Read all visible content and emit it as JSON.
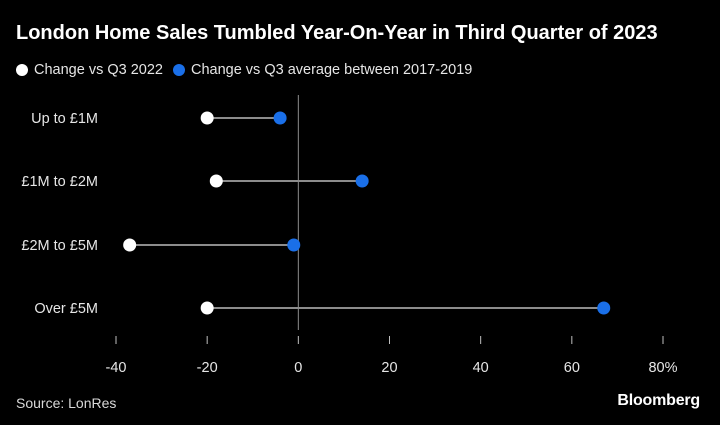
{
  "title": "London Home Sales Tumbled Year-On-Year in Third Quarter of 2023",
  "source": "Source: LonRes",
  "brand": "Bloomberg",
  "colors": {
    "background": "#000000",
    "series_a": "#ffffff",
    "series_b": "#1a6fe8",
    "connector": "#8c8c8c",
    "zero_line": "#8c8c8c",
    "text": "#e6e6e6"
  },
  "chart_data": {
    "type": "dumbbell",
    "title": "London Home Sales Tumbled Year-On-Year in Third Quarter of 2023",
    "orientation": "horizontal",
    "categories": [
      "Up to £1M",
      "£1M to £2M",
      "£2M to £5M",
      "Over £5M"
    ],
    "series": [
      {
        "name": "Change vs Q3 2022",
        "values": [
          -20,
          -18,
          -37,
          -20
        ]
      },
      {
        "name": "Change vs Q3 average between 2017-2019",
        "values": [
          -4,
          14,
          -1,
          67
        ]
      }
    ],
    "xlim": [
      -40,
      80
    ],
    "xticks": [
      -40,
      -20,
      0,
      20,
      40,
      60,
      80
    ],
    "xtick_labels": [
      "-40",
      "-20",
      "0",
      "20",
      "40",
      "60",
      "80%"
    ],
    "grid": false,
    "legend_position": "top-left"
  }
}
